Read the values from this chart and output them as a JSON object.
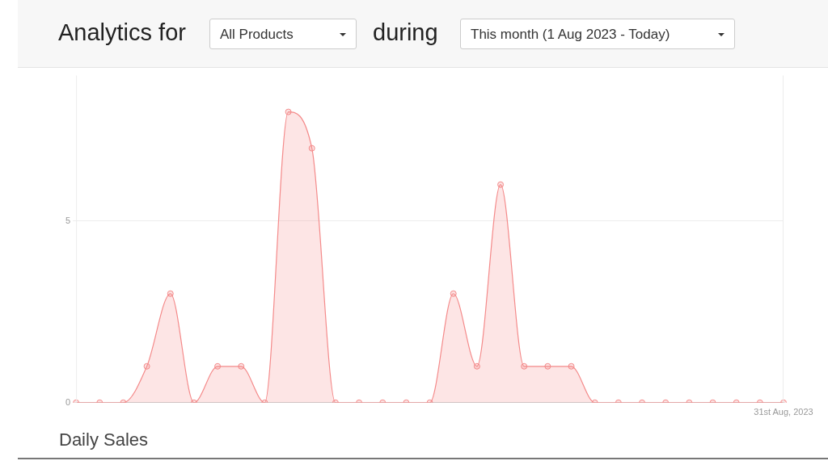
{
  "chart_data": {
    "type": "area",
    "title": "Analytics for",
    "subtitle": "Daily Sales",
    "annotations": [
      "All Products",
      "during",
      "This month (1 Aug 2023 - Today)"
    ],
    "categories": [
      null,
      null,
      null,
      null,
      null,
      null,
      null,
      null,
      null,
      null,
      null,
      null,
      null,
      null,
      null,
      null,
      null,
      null,
      null,
      null,
      null,
      null,
      null,
      null,
      null,
      null,
      null,
      null,
      null,
      null,
      "31st Aug, 2023"
    ],
    "series": [
      {
        "color": "#f48a8a",
        "values": [
          0,
          0,
          0,
          1,
          3,
          0,
          1,
          1,
          0,
          8,
          7,
          0,
          0,
          0,
          0,
          0,
          3,
          1,
          6,
          1,
          1,
          1,
          0,
          0,
          0,
          0,
          0,
          0,
          0,
          0,
          0
        ]
      }
    ],
    "ylim": [
      0,
      9
    ],
    "yticks": [
      0,
      5
    ],
    "grid": "y",
    "legend": false,
    "marker": "circle"
  }
}
